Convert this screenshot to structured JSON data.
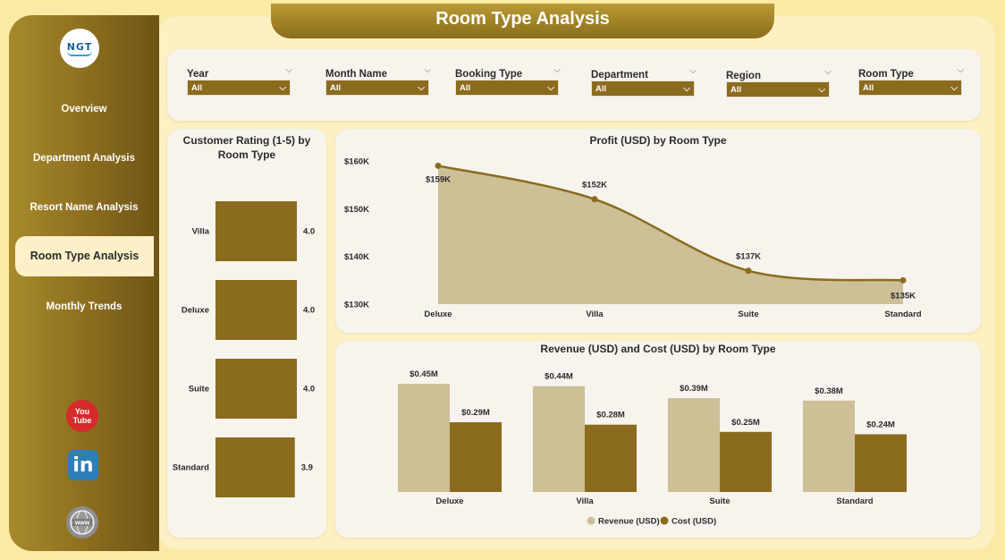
{
  "header": {
    "title": "Room Type Analysis"
  },
  "sidebar": {
    "logo": "NGT",
    "items": [
      {
        "label": "Overview"
      },
      {
        "label": "Department Analysis"
      },
      {
        "label": "Resort Name Analysis"
      },
      {
        "label": "Room Type Analysis",
        "active": true
      },
      {
        "label": "Monthly Trends"
      }
    ],
    "social": [
      {
        "icon": "youtube-icon",
        "text": "You Tube"
      },
      {
        "icon": "linkedin-icon",
        "text": "in"
      },
      {
        "icon": "web-icon",
        "text": "www"
      }
    ]
  },
  "filters": [
    {
      "label": "Year",
      "value": "All"
    },
    {
      "label": "Month Name",
      "value": "All"
    },
    {
      "label": "Booking Type",
      "value": "All"
    },
    {
      "label": "Department",
      "value": "All"
    },
    {
      "label": "Region",
      "value": "All"
    },
    {
      "label": "Room Type",
      "value": "All"
    }
  ],
  "colors": {
    "accent": "#8b6b1e",
    "light": "#cdbf96",
    "sidebar": "#8a6c1e",
    "background": "#fbe9a6"
  },
  "chart_data": [
    {
      "type": "bar",
      "orientation": "horizontal",
      "title": "Customer Rating (1-5) by Room Type",
      "categories": [
        "Villa",
        "Deluxe",
        "Suite",
        "Standard"
      ],
      "values": [
        4.0,
        4.0,
        4.0,
        3.9
      ],
      "value_labels": [
        "4.0",
        "4.0",
        "4.0",
        "3.9"
      ]
    },
    {
      "type": "area",
      "title": "Profit (USD) by Room Type",
      "categories": [
        "Deluxe",
        "Villa",
        "Suite",
        "Standard"
      ],
      "values": [
        159,
        152,
        137,
        135
      ],
      "value_labels": [
        "$159K",
        "$152K",
        "$137K",
        "$135K"
      ],
      "y_ticks": [
        "$160K",
        "$150K",
        "$140K",
        "$130K"
      ],
      "y_tick_values": [
        160,
        150,
        140,
        130
      ],
      "ylim": [
        130,
        160
      ]
    },
    {
      "type": "bar",
      "title": "Revenue (USD) and Cost (USD) by Room Type",
      "categories": [
        "Deluxe",
        "Villa",
        "Suite",
        "Standard"
      ],
      "series": [
        {
          "name": "Revenue (USD)",
          "values": [
            0.45,
            0.44,
            0.39,
            0.38
          ],
          "labels": [
            "$0.45M",
            "$0.44M",
            "$0.39M",
            "$0.38M"
          ],
          "color": "#cdbf96"
        },
        {
          "name": "Cost (USD)",
          "values": [
            0.29,
            0.28,
            0.25,
            0.24
          ],
          "labels": [
            "$0.29M",
            "$0.28M",
            "$0.25M",
            "$0.24M"
          ],
          "color": "#8b6b1e"
        }
      ],
      "ylim": [
        0,
        0.45
      ],
      "legend": "bottom"
    }
  ]
}
